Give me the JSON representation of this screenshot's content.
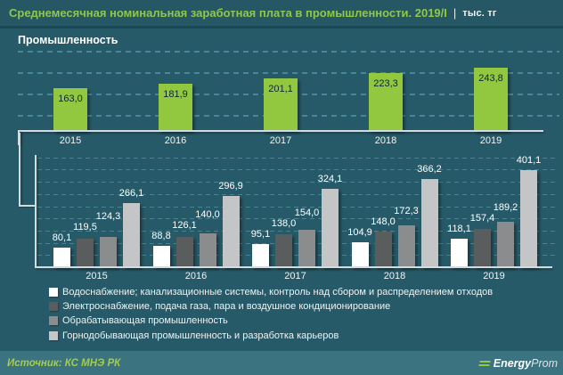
{
  "header": {
    "title": "Среднемесячная номинальная заработная плата в промышленности. 2019/I",
    "separator": "|",
    "unit": "тыс. тг"
  },
  "industry_label": "Промышленность",
  "chart_data": [
    {
      "type": "bar",
      "title": "Промышленность",
      "unit": "тыс. тг",
      "categories": [
        "2015",
        "2016",
        "2017",
        "2018",
        "2019"
      ],
      "values": [
        163.0,
        181.9,
        201.1,
        223.3,
        243.8
      ],
      "bar_color": "#92c83f",
      "value_label_color": "#0e2430",
      "ylim": [
        0,
        325
      ],
      "grid": "dashed",
      "xlabel": "",
      "ylabel": ""
    },
    {
      "type": "bar",
      "categories": [
        "2015",
        "2016",
        "2017",
        "2018",
        "2019"
      ],
      "series": [
        {
          "name": "Водоснабжение; канализационные системы, контроль над сбором и распределением отходов",
          "color": "#ffffff",
          "values": [
            80.1,
            88.8,
            95.1,
            104.9,
            118.1
          ]
        },
        {
          "name": "Электроснабжение, подача газа, пара и воздушное кондиционирование",
          "color": "#595d5e",
          "values": [
            119.5,
            126.1,
            138.0,
            148.0,
            157.4
          ]
        },
        {
          "name": "Обрабатывающая промышленность",
          "color": "#8a8c8d",
          "values": [
            124.3,
            140.0,
            154.0,
            172.3,
            189.2
          ]
        },
        {
          "name": "Горнодобывающая промышленность и разработка карьеров",
          "color": "#c4c5c6",
          "values": [
            266.1,
            296.9,
            324.1,
            366.2,
            401.1
          ]
        }
      ],
      "ylim": [
        0,
        465
      ],
      "grid": "dashed",
      "legend_position": "bottom-left",
      "xlabel": "",
      "ylabel": ""
    }
  ],
  "footer": {
    "source": "Источник: КС МНЭ РК",
    "logo": {
      "bold": "Energy",
      "light": "Prom"
    }
  },
  "colors": {
    "background": "#275a68",
    "header_bg": "#265765",
    "footer_bg": "#3b7380",
    "title_green": "#8fc847",
    "text_white": "#ffffff",
    "gridline": "#4e8fa0",
    "axis_line": "#cfdce0",
    "bar_green": "#92c83f",
    "source_text": "#a4cc4e"
  }
}
